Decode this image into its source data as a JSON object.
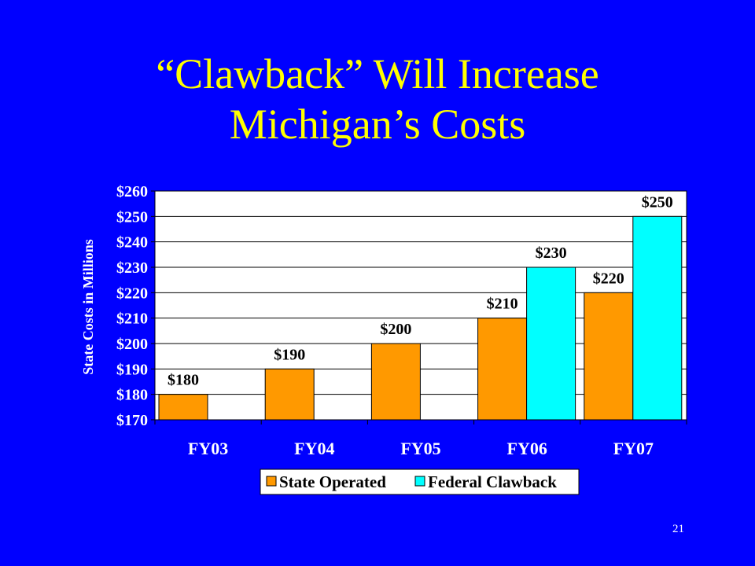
{
  "slide": {
    "title_line1": "“Clawback” Will Increase",
    "title_line2": "Michigan’s Costs",
    "page_number": "21"
  },
  "colors": {
    "background": "#0000ff",
    "title": "#ffff00",
    "plot_area": "#ffffff",
    "state_operated": "#ff9900",
    "federal_clawback": "#00ffff"
  },
  "chart_data": {
    "type": "bar",
    "title": "",
    "xlabel": "",
    "ylabel": "State Costs in Millions",
    "ylim": [
      170,
      260
    ],
    "ytick_step": 10,
    "ytick_prefix": "$",
    "grid": true,
    "legend_position": "bottom",
    "categories": [
      "FY03",
      "FY04",
      "FY05",
      "FY06",
      "FY07"
    ],
    "series": [
      {
        "name": "State Operated",
        "values": [
          180,
          190,
          200,
          210,
          220
        ],
        "labels": [
          "$180",
          "$190",
          "$200",
          "$210",
          "$220"
        ]
      },
      {
        "name": "Federal Clawback",
        "values": [
          null,
          null,
          null,
          230,
          250
        ],
        "labels": [
          "",
          "",
          "",
          "$230",
          "$250"
        ]
      }
    ]
  }
}
